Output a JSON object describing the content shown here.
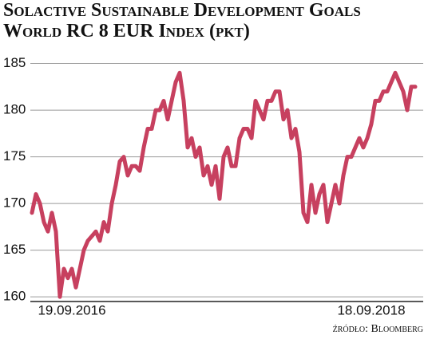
{
  "chart_data": {
    "type": "line",
    "title": "Solactive Sustainable Development Goals World RC 8 EUR Index (pkt)",
    "source": "źródło: Bloomberg",
    "categories": [
      null,
      null,
      null,
      null,
      null,
      null,
      null,
      null,
      null,
      null,
      "19.09.2016",
      null,
      null,
      null,
      null,
      null,
      null,
      null,
      null,
      null,
      null,
      null,
      null,
      null,
      null,
      null,
      null,
      null,
      null,
      null,
      null,
      null,
      null,
      null,
      null,
      null,
      null,
      null,
      null,
      null,
      null,
      null,
      null,
      null,
      null,
      null,
      null,
      null,
      null,
      null,
      null,
      null,
      null,
      null,
      null,
      null,
      null,
      null,
      null,
      null,
      null,
      null,
      null,
      null,
      null,
      null,
      null,
      null,
      null,
      null,
      null,
      null,
      null,
      null,
      null,
      null,
      null,
      null,
      null,
      null,
      null,
      null,
      null,
      null,
      null,
      "18.09.2018",
      null,
      null,
      null,
      null,
      null,
      null,
      null,
      null,
      null,
      null,
      null
    ],
    "values": [
      169,
      171,
      170,
      168,
      167,
      169,
      167,
      160,
      163,
      162,
      163,
      161,
      163,
      165,
      166,
      166.5,
      167,
      166,
      168,
      167,
      170,
      172,
      174.5,
      175,
      173,
      174,
      174,
      173.5,
      176,
      178,
      178,
      180,
      180,
      181,
      179,
      181,
      183,
      184,
      181,
      176,
      177,
      175,
      176,
      173,
      174,
      172,
      174,
      170.5,
      175,
      176,
      174,
      174,
      177,
      178,
      178,
      177,
      181,
      180,
      179,
      181,
      181,
      182,
      182,
      179,
      180,
      177,
      178,
      175.5,
      169,
      168,
      172,
      169,
      171,
      172,
      168,
      170,
      172,
      170,
      173,
      175,
      175,
      176,
      177,
      176,
      177,
      178.5,
      181,
      181,
      182,
      182,
      183,
      184,
      183,
      182,
      180,
      182.5,
      182.5
    ],
    "color": "#c7405f",
    "ylim": [
      159.5,
      186.5
    ],
    "yticks": [
      160,
      165,
      170,
      175,
      180,
      185
    ],
    "grid": true
  }
}
